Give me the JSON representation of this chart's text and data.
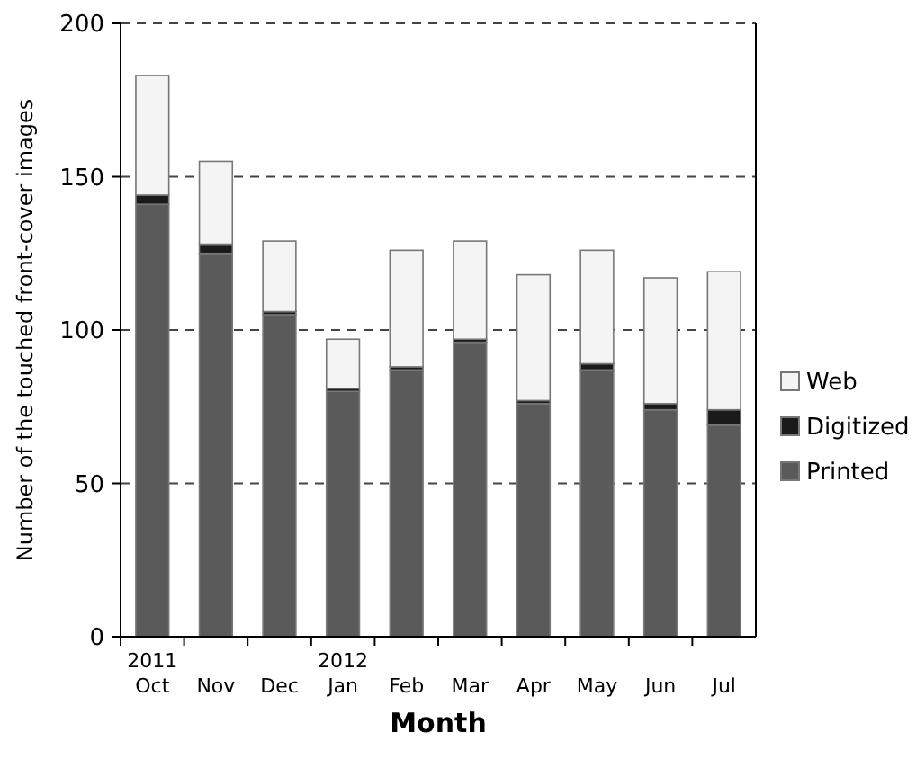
{
  "chart_data": {
    "type": "bar",
    "stacked": true,
    "xlabel": "Month",
    "ylabel": "Number of the touched front-cover images",
    "categories": [
      "2011\nOct",
      "Nov",
      "Dec",
      "2012\nJan",
      "Feb",
      "Mar",
      "Apr",
      "May",
      "Jun",
      "Jul"
    ],
    "series": [
      {
        "name": "Printed",
        "color": "#5a5a5a",
        "values": [
          141,
          125,
          105,
          80,
          87,
          96,
          76,
          87,
          74,
          69
        ]
      },
      {
        "name": "Digitized",
        "color": "#1a1a1a",
        "values": [
          3,
          3,
          1,
          1,
          1,
          1,
          1,
          2,
          2,
          5
        ]
      },
      {
        "name": "Web",
        "color": "#f4f4f4",
        "values": [
          39,
          27,
          23,
          16,
          38,
          32,
          41,
          37,
          41,
          45
        ]
      }
    ],
    "ylim": [
      0,
      200
    ],
    "yticks": [
      0,
      50,
      100,
      150,
      200
    ],
    "grid": "y",
    "line_style": "dashed",
    "legend": "right"
  }
}
